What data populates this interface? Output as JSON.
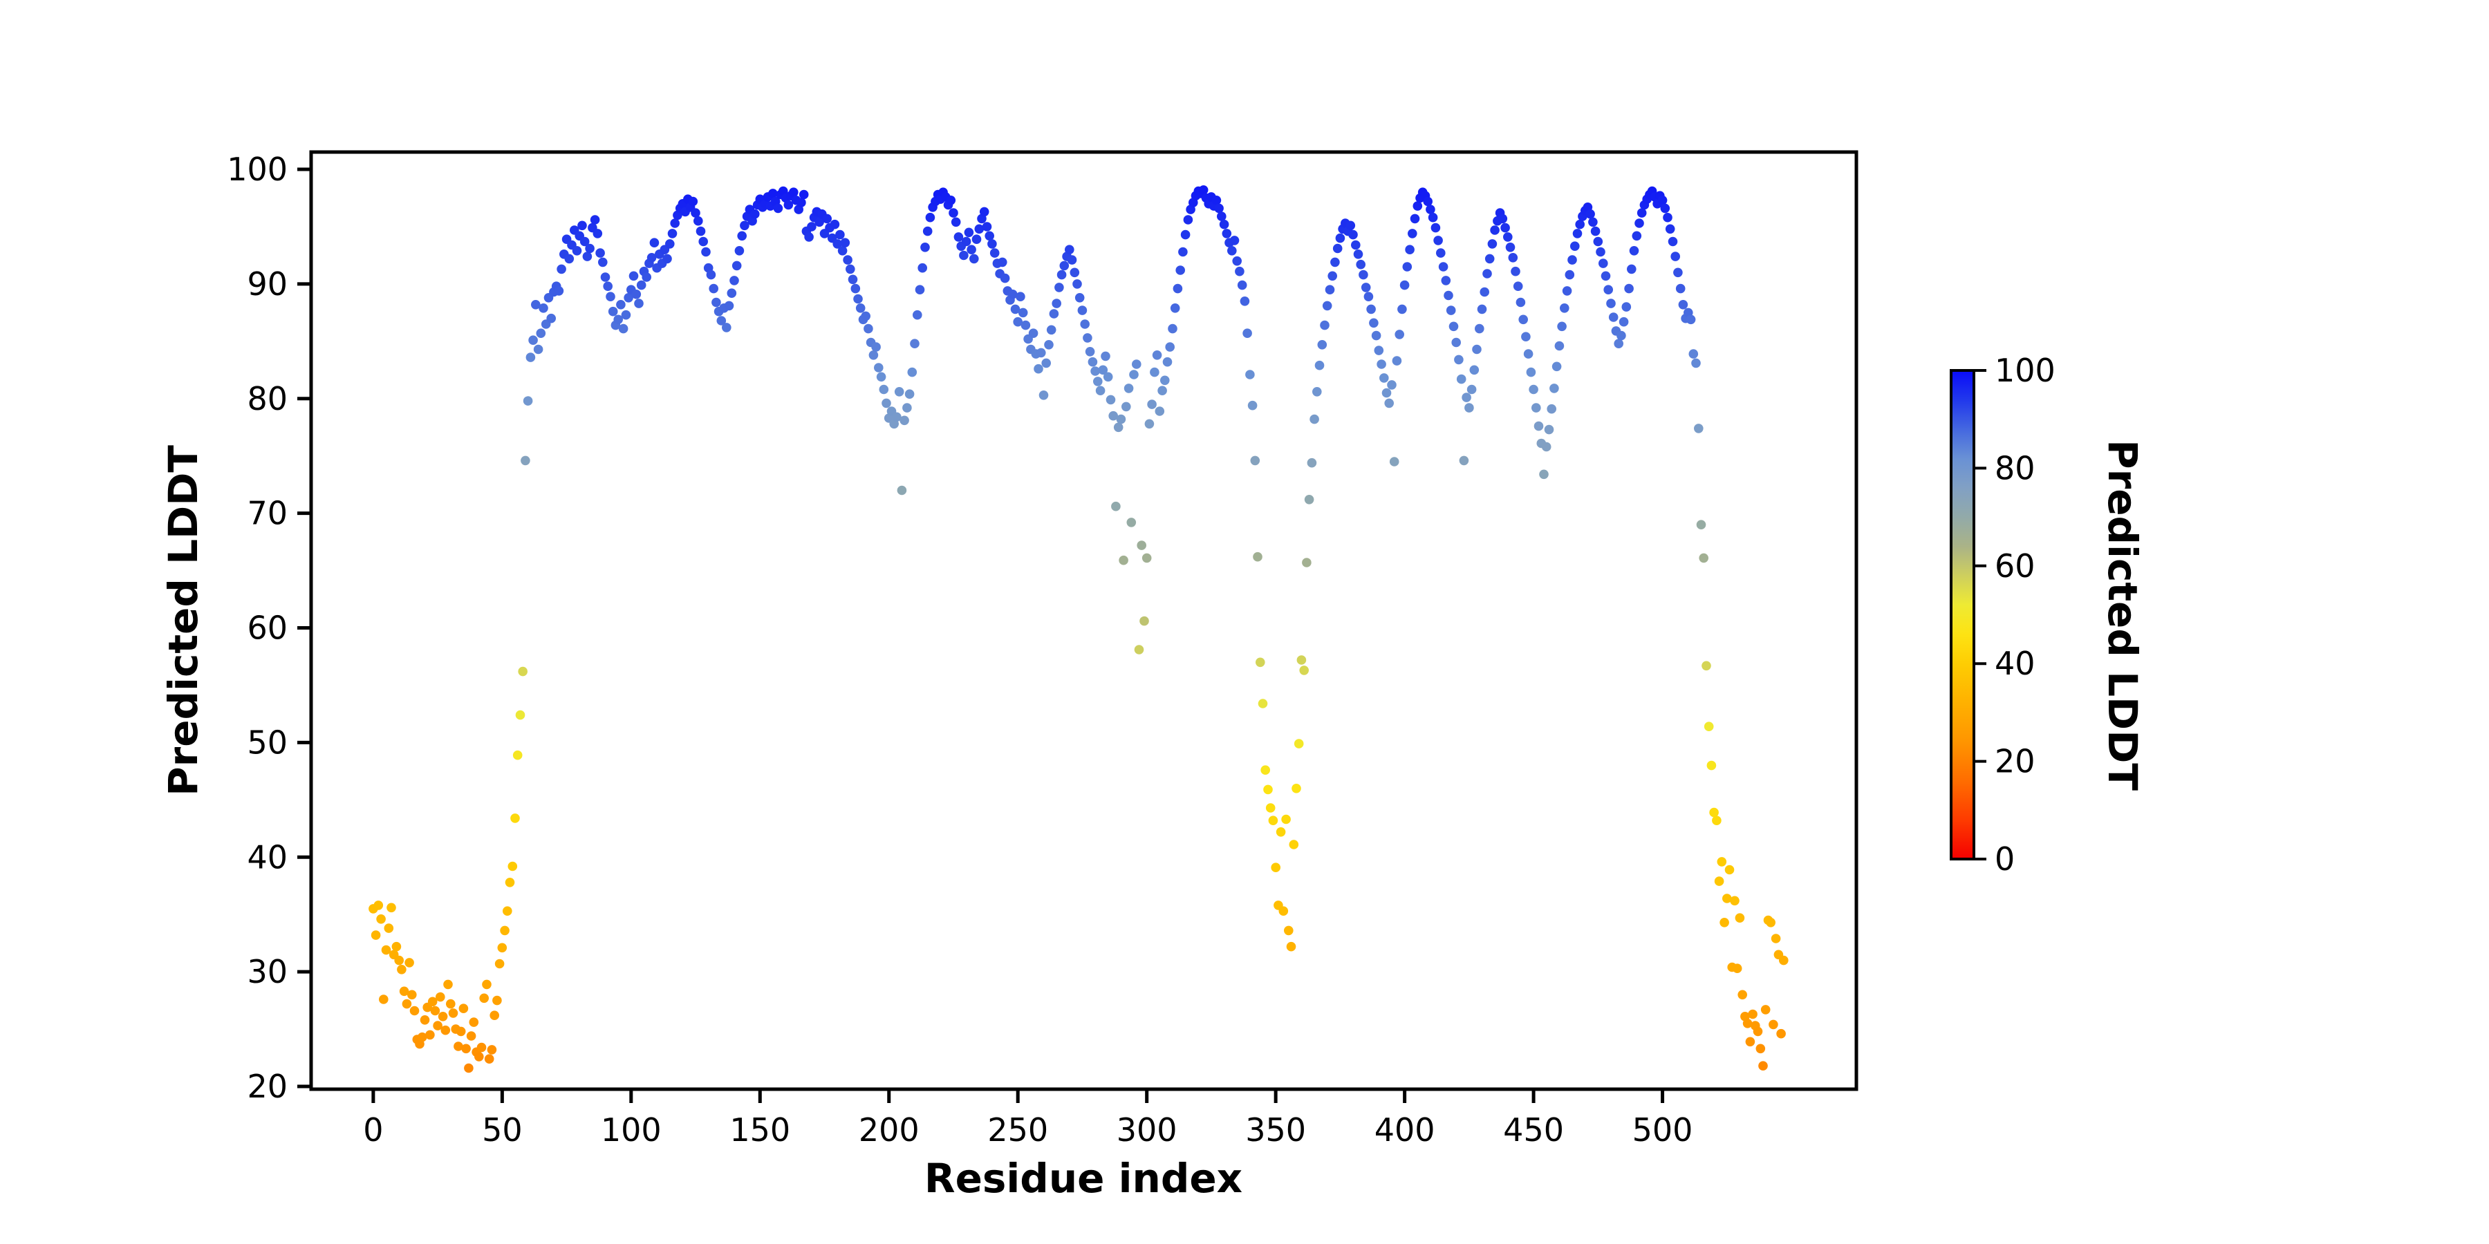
{
  "figure": {
    "background": "#ffffff",
    "spine_color": "#000000"
  },
  "chart_data": {
    "type": "scatter",
    "title": "",
    "xlabel": "Residue index",
    "ylabel": "Predicted LDDT",
    "x_definition": "residue index = position in values array (0..547)",
    "xticks": [
      0,
      50,
      100,
      150,
      200,
      250,
      300,
      350,
      400,
      450,
      500
    ],
    "yticks": [
      20,
      30,
      40,
      50,
      60,
      70,
      80,
      90,
      100
    ],
    "xlim": [
      -24.1,
      575.2
    ],
    "ylim": [
      19.76,
      101.51
    ],
    "grid": false,
    "legend": "none",
    "marker_radius_px": 6.8,
    "values": [
      35.5,
      33.2,
      35.8,
      34.6,
      27.6,
      31.9,
      33.8,
      35.6,
      31.5,
      32.2,
      31.0,
      30.2,
      28.3,
      27.2,
      30.8,
      28.0,
      26.6,
      24.1,
      23.7,
      24.3,
      25.8,
      26.9,
      24.5,
      27.4,
      26.6,
      25.3,
      27.8,
      26.1,
      24.9,
      28.9,
      27.2,
      26.4,
      25.0,
      23.5,
      24.8,
      26.8,
      23.3,
      21.6,
      24.4,
      25.6,
      23.0,
      22.6,
      23.4,
      27.7,
      28.9,
      22.4,
      23.2,
      26.2,
      27.5,
      30.7,
      32.1,
      33.6,
      35.3,
      37.8,
      39.2,
      43.4,
      48.9,
      52.4,
      56.2,
      74.6,
      79.8,
      83.6,
      85.1,
      88.2,
      84.3,
      85.7,
      87.9,
      86.5,
      88.8,
      87.0,
      89.3,
      89.8,
      89.4,
      91.3,
      92.6,
      93.9,
      92.2,
      93.4,
      94.7,
      92.9,
      94.2,
      95.1,
      93.7,
      92.4,
      93.1,
      94.9,
      95.6,
      94.4,
      92.7,
      91.9,
      90.6,
      89.8,
      88.9,
      87.6,
      86.4,
      86.9,
      88.2,
      86.1,
      87.3,
      88.8,
      89.5,
      90.7,
      89.1,
      88.3,
      89.9,
      91.1,
      90.6,
      91.8,
      92.3,
      93.6,
      91.4,
      92.6,
      91.8,
      93.0,
      92.2,
      93.5,
      94.4,
      95.3,
      96.0,
      96.6,
      97.0,
      96.3,
      97.4,
      96.7,
      97.2,
      96.2,
      95.5,
      94.6,
      93.7,
      92.8,
      91.4,
      90.8,
      89.6,
      88.4,
      87.6,
      86.8,
      87.9,
      86.2,
      88.1,
      89.2,
      90.3,
      91.6,
      92.9,
      94.2,
      95.1,
      95.9,
      96.5,
      95.5,
      96.1,
      96.9,
      97.4,
      96.7,
      97.0,
      97.6,
      96.8,
      97.9,
      97.2,
      96.6,
      97.8,
      98.1,
      97.5,
      96.9,
      97.7,
      98.0,
      97.3,
      96.5,
      97.1,
      97.8,
      94.6,
      94.1,
      95.0,
      95.8,
      96.3,
      95.4,
      96.1,
      94.4,
      95.7,
      94.9,
      94.0,
      95.2,
      93.5,
      94.3,
      92.9,
      93.6,
      92.1,
      91.3,
      90.4,
      89.6,
      88.7,
      87.9,
      86.9,
      87.2,
      86.1,
      84.9,
      83.8,
      84.5,
      82.7,
      81.9,
      80.8,
      79.6,
      78.3,
      78.9,
      77.8,
      78.4,
      80.6,
      72.0,
      78.1,
      79.2,
      80.4,
      82.3,
      84.8,
      87.3,
      89.5,
      91.4,
      93.2,
      94.6,
      95.8,
      96.7,
      97.2,
      97.8,
      97.4,
      98.0,
      97.6,
      96.9,
      97.3,
      96.2,
      95.4,
      94.1,
      93.3,
      92.5,
      93.7,
      94.5,
      93.0,
      92.2,
      93.9,
      94.8,
      95.7,
      96.3,
      95.0,
      94.2,
      93.5,
      92.7,
      91.8,
      90.9,
      91.9,
      90.5,
      89.4,
      88.6,
      89.1,
      87.8,
      86.7,
      88.9,
      87.5,
      86.4,
      85.2,
      84.3,
      85.7,
      83.9,
      82.6,
      84.0,
      80.3,
      83.1,
      84.7,
      86.0,
      87.4,
      88.3,
      89.7,
      90.8,
      91.6,
      92.4,
      93.0,
      92.1,
      91.0,
      90.0,
      88.8,
      87.7,
      86.5,
      85.3,
      84.1,
      83.2,
      82.4,
      81.5,
      80.7,
      82.5,
      83.7,
      81.9,
      79.9,
      78.5,
      70.6,
      77.5,
      78.2,
      65.9,
      79.3,
      80.9,
      69.2,
      82.1,
      83.0,
      58.1,
      67.2,
      60.6,
      66.1,
      77.8,
      79.5,
      82.3,
      83.8,
      78.9,
      80.7,
      81.6,
      83.2,
      84.5,
      86.1,
      87.9,
      89.6,
      91.2,
      92.8,
      94.3,
      95.6,
      96.5,
      97.1,
      97.7,
      98.1,
      97.9,
      98.2,
      97.5,
      97.0,
      97.6,
      96.8,
      97.3,
      96.6,
      95.9,
      95.2,
      94.4,
      93.6,
      92.9,
      93.8,
      92.0,
      91.1,
      89.9,
      88.5,
      85.7,
      82.1,
      79.4,
      74.6,
      66.2,
      57.0,
      53.4,
      47.6,
      45.9,
      44.3,
      43.2,
      39.1,
      35.8,
      42.2,
      35.3,
      43.3,
      33.6,
      32.2,
      41.1,
      46.0,
      49.9,
      57.2,
      56.3,
      65.7,
      71.2,
      74.4,
      78.2,
      80.6,
      82.9,
      84.7,
      86.4,
      88.1,
      89.5,
      90.7,
      91.9,
      93.1,
      94.0,
      94.8,
      95.3,
      94.6,
      95.1,
      94.3,
      93.4,
      92.6,
      91.7,
      90.8,
      89.7,
      88.9,
      87.8,
      86.6,
      85.5,
      84.2,
      83.0,
      81.8,
      80.5,
      79.6,
      81.2,
      74.5,
      83.3,
      85.6,
      87.8,
      89.9,
      91.5,
      93.0,
      94.4,
      95.7,
      96.8,
      97.5,
      98.0,
      97.7,
      97.2,
      96.5,
      95.8,
      94.9,
      93.8,
      92.7,
      91.5,
      90.3,
      89.0,
      87.7,
      86.3,
      84.9,
      83.4,
      81.7,
      74.6,
      80.1,
      79.2,
      80.8,
      82.5,
      84.3,
      86.1,
      87.8,
      89.3,
      90.9,
      92.2,
      93.5,
      94.7,
      95.5,
      96.2,
      95.7,
      94.9,
      94.1,
      93.2,
      92.3,
      91.1,
      89.8,
      88.4,
      86.9,
      85.4,
      83.9,
      82.3,
      80.8,
      79.2,
      77.6,
      76.1,
      73.4,
      75.8,
      77.3,
      79.1,
      80.9,
      82.8,
      84.6,
      86.3,
      87.9,
      89.4,
      90.8,
      92.1,
      93.3,
      94.4,
      95.2,
      95.9,
      96.4,
      96.7,
      96.1,
      95.4,
      94.6,
      93.7,
      92.8,
      91.8,
      90.7,
      89.5,
      88.3,
      87.1,
      85.9,
      84.8,
      85.5,
      86.7,
      88.0,
      89.6,
      91.3,
      92.9,
      94.2,
      95.3,
      96.2,
      96.9,
      97.4,
      97.8,
      98.1,
      97.6,
      97.0,
      97.7,
      97.3,
      96.6,
      95.8,
      94.8,
      93.7,
      92.4,
      91.0,
      89.6,
      88.2,
      87.0,
      87.5,
      86.9,
      83.9,
      83.1,
      77.4,
      69.0,
      66.1,
      56.7,
      51.4,
      48.0,
      43.9,
      43.2,
      37.9,
      39.6,
      34.3,
      36.4,
      38.9,
      30.4,
      36.2,
      30.3,
      34.7,
      28.0,
      26.1,
      25.5,
      23.9,
      26.3,
      25.3,
      24.8,
      23.3,
      21.8,
      26.7,
      34.5,
      34.3,
      25.4,
      32.9,
      31.5,
      24.6,
      31.0
    ],
    "colorbar": {
      "label": "Predicted LDDT",
      "ticks": [
        0,
        20,
        40,
        60,
        80,
        100
      ],
      "range": [
        0,
        100
      ],
      "colormap_stops": [
        [
          0,
          "#f40000"
        ],
        [
          8,
          "#fe3b00"
        ],
        [
          16,
          "#ff6d00"
        ],
        [
          24,
          "#ff9500"
        ],
        [
          32,
          "#ffb100"
        ],
        [
          40,
          "#fecd03"
        ],
        [
          46,
          "#fde313"
        ],
        [
          52,
          "#eeea33"
        ],
        [
          58,
          "#cecf5e"
        ],
        [
          64,
          "#aab387"
        ],
        [
          70,
          "#92aaa9"
        ],
        [
          76,
          "#81a0c4"
        ],
        [
          82,
          "#6991d5"
        ],
        [
          88,
          "#4467e0"
        ],
        [
          94,
          "#2138ec"
        ],
        [
          100,
          "#0a0cf8"
        ]
      ]
    }
  }
}
